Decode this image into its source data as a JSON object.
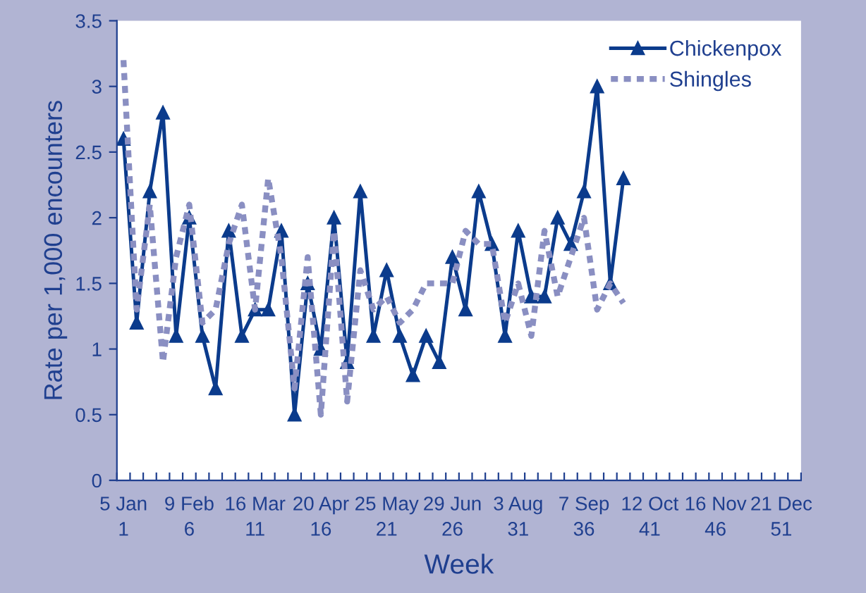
{
  "chart_data": {
    "type": "line",
    "xlabel": "Week",
    "ylabel": "Rate per 1,000 encounters",
    "categories": [
      "5 Jan\n1",
      null,
      null,
      null,
      null,
      "9 Feb\n6",
      null,
      null,
      null,
      null,
      "16 Mar\n11",
      null,
      null,
      null,
      null,
      "20 Apr\n16",
      null,
      null,
      null,
      null,
      "25 May\n21",
      null,
      null,
      null,
      null,
      "29 Jun\n26",
      null,
      null,
      null,
      null,
      "3 Aug\n31",
      null,
      null,
      null,
      null,
      "7 Sep\n36",
      null,
      null,
      null,
      null,
      "12 Oct\n41",
      null,
      null,
      null,
      null,
      "16 Nov\n46",
      null,
      null,
      null,
      null,
      "21 Dec\n51",
      null
    ],
    "series": [
      {
        "name": "Chickenpox",
        "color": "#0b3b8c",
        "marker": "triangle",
        "line_style": "solid",
        "values": [
          2.6,
          1.2,
          2.2,
          2.8,
          1.1,
          2.0,
          1.1,
          0.7,
          1.9,
          1.1,
          1.3,
          1.3,
          1.9,
          0.5,
          1.5,
          1.0,
          2.0,
          0.9,
          2.2,
          1.1,
          1.6,
          1.1,
          0.8,
          1.1,
          0.9,
          1.7,
          1.3,
          2.2,
          1.8,
          1.1,
          1.9,
          1.4,
          1.4,
          2.0,
          1.8,
          2.2,
          3.0,
          1.5,
          2.3,
          null,
          null,
          null,
          null,
          null,
          null,
          null,
          null,
          null,
          null,
          null,
          null,
          null
        ]
      },
      {
        "name": "Shingles",
        "color": "#8a8fc2",
        "marker": "none",
        "line_style": "dotted",
        "values": [
          3.2,
          1.3,
          2.1,
          0.9,
          1.7,
          2.1,
          1.2,
          1.3,
          1.8,
          2.1,
          1.3,
          2.3,
          1.7,
          0.7,
          1.7,
          0.5,
          1.9,
          0.6,
          1.6,
          1.3,
          1.4,
          1.2,
          1.3,
          1.5,
          1.5,
          1.5,
          1.9,
          1.8,
          1.8,
          1.2,
          1.5,
          1.1,
          1.9,
          1.4,
          1.7,
          2.0,
          1.3,
          1.5,
          1.35,
          null,
          null,
          null,
          null,
          null,
          null,
          null,
          null,
          null,
          null,
          null,
          null,
          null
        ]
      }
    ],
    "ylim": [
      0,
      3.5
    ],
    "yticks": [
      0,
      0.5,
      1,
      1.5,
      2,
      2.5,
      3,
      3.5
    ],
    "grid": false,
    "legend": "top right"
  }
}
